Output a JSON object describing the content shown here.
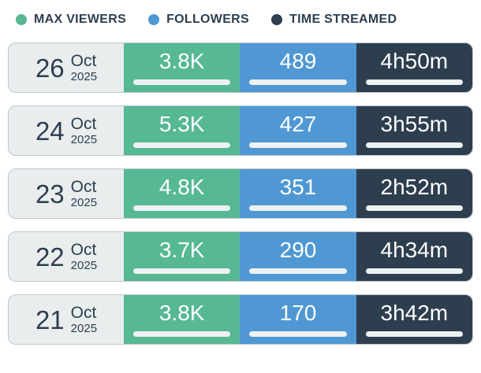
{
  "legend": {
    "items": [
      {
        "label": "MAX VIEWERS",
        "color": "#57b894"
      },
      {
        "label": "FOLLOWERS",
        "color": "#4f98d3"
      },
      {
        "label": "TIME STREAMED",
        "color": "#2d3e4f"
      }
    ]
  },
  "colors": {
    "max_viewers_cell": "#57b894",
    "followers_cell": "#4f98d3",
    "time_streamed_cell": "#2d3e4f",
    "date_cell_bg": "#e9eded",
    "text_dark": "#2d3e4f",
    "text_light": "#ffffff",
    "bar_track": "#eef1f2",
    "bar_fill_dark": "#2d3e4f",
    "bar_fill_red": "#c64a36"
  },
  "rows": [
    {
      "day": "26",
      "month": "Oct",
      "year": "2025",
      "max_viewers": {
        "value": "3.8K",
        "fill_pct": 32
      },
      "followers": {
        "value": "489",
        "fill_pct": 45
      },
      "time_streamed": {
        "value": "4h50m",
        "fill_pct": 100
      }
    },
    {
      "day": "24",
      "month": "Oct",
      "year": "2025",
      "max_viewers": {
        "value": "5.3K",
        "fill_pct": 44
      },
      "followers": {
        "value": "427",
        "fill_pct": 39
      },
      "time_streamed": {
        "value": "3h55m",
        "fill_pct": 81
      }
    },
    {
      "day": "23",
      "month": "Oct",
      "year": "2025",
      "max_viewers": {
        "value": "4.8K",
        "fill_pct": 40
      },
      "followers": {
        "value": "351",
        "fill_pct": 32
      },
      "time_streamed": {
        "value": "2h52m",
        "fill_pct": 59
      }
    },
    {
      "day": "22",
      "month": "Oct",
      "year": "2025",
      "max_viewers": {
        "value": "3.7K",
        "fill_pct": 31
      },
      "followers": {
        "value": "290",
        "fill_pct": 27
      },
      "time_streamed": {
        "value": "4h34m",
        "fill_pct": 94
      }
    },
    {
      "day": "21",
      "month": "Oct",
      "year": "2025",
      "max_viewers": {
        "value": "3.8K",
        "fill_pct": 32
      },
      "followers": {
        "value": "170",
        "fill_pct": 16
      },
      "time_streamed": {
        "value": "3h42m",
        "fill_pct": 77
      }
    }
  ],
  "chart_data": {
    "type": "table",
    "categories": [
      "26 Oct 2025",
      "24 Oct 2025",
      "23 Oct 2025",
      "22 Oct 2025",
      "21 Oct 2025"
    ],
    "series": [
      {
        "name": "MAX VIEWERS",
        "values": [
          "3.8K",
          "5.3K",
          "4.8K",
          "3.7K",
          "3.8K"
        ]
      },
      {
        "name": "FOLLOWERS",
        "values": [
          489,
          427,
          351,
          290,
          170
        ]
      },
      {
        "name": "TIME STREAMED",
        "values": [
          "4h50m",
          "3h55m",
          "2h52m",
          "4h34m",
          "3h42m"
        ]
      }
    ],
    "legend_position": "top",
    "notes": "Each cell shows value with a proportional progress bar underneath; time bars are red, viewer/follower bars are dark navy."
  }
}
